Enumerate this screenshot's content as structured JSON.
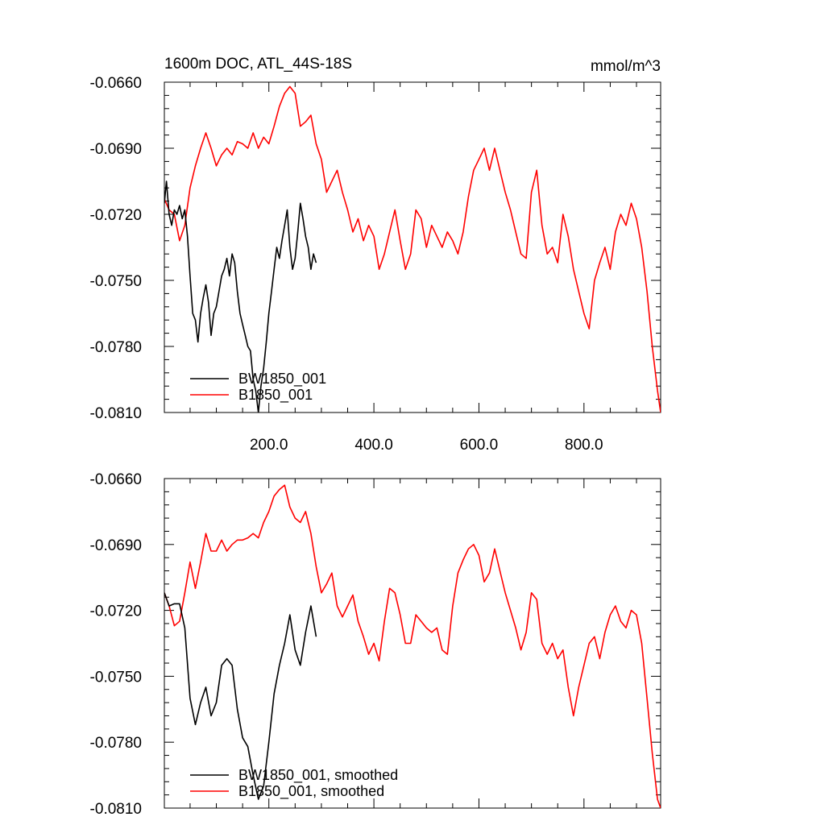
{
  "chart_data": [
    {
      "type": "line",
      "title": "1600m DOC, ATL_44S-18S",
      "units": "mmol/m^3",
      "xlim": [
        1,
        946
      ],
      "ylim": [
        -0.081,
        -0.066
      ],
      "xticks": [
        200,
        400,
        600,
        800
      ],
      "xtick_labels": [
        "200.0",
        "400.0",
        "600.0",
        "800.0"
      ],
      "yticks": [
        -0.066,
        -0.069,
        -0.072,
        -0.075,
        -0.078,
        -0.081
      ],
      "ytick_labels": [
        "-0.0660",
        "-0.0690",
        "-0.0720",
        "-0.0750",
        "-0.0780",
        "-0.0810"
      ],
      "grid": false,
      "legend_position": "bottom-left",
      "series": [
        {
          "name": "BW1850_001",
          "color": "#000000",
          "x": [
            1,
            5,
            10,
            15,
            20,
            25,
            30,
            35,
            40,
            45,
            50,
            55,
            60,
            65,
            70,
            75,
            80,
            85,
            90,
            95,
            100,
            105,
            110,
            115,
            120,
            125,
            130,
            135,
            140,
            145,
            150,
            155,
            160,
            165,
            170,
            175,
            180,
            185,
            190,
            195,
            200,
            205,
            210,
            215,
            220,
            225,
            230,
            235,
            240,
            245,
            250,
            255,
            260,
            265,
            270,
            275,
            280,
            285,
            290
          ],
          "y": [
            -0.0715,
            -0.0705,
            -0.072,
            -0.0725,
            -0.0718,
            -0.072,
            -0.0716,
            -0.0722,
            -0.0718,
            -0.073,
            -0.0748,
            -0.0765,
            -0.0768,
            -0.0778,
            -0.0765,
            -0.0758,
            -0.0752,
            -0.076,
            -0.0775,
            -0.0765,
            -0.0762,
            -0.0755,
            -0.0748,
            -0.0745,
            -0.074,
            -0.0748,
            -0.0738,
            -0.0742,
            -0.0755,
            -0.0765,
            -0.077,
            -0.0775,
            -0.078,
            -0.0782,
            -0.0795,
            -0.08,
            -0.081,
            -0.0798,
            -0.079,
            -0.0778,
            -0.0765,
            -0.0755,
            -0.0745,
            -0.0735,
            -0.074,
            -0.0732,
            -0.0725,
            -0.0718,
            -0.0735,
            -0.0745,
            -0.074,
            -0.0728,
            -0.0715,
            -0.0722,
            -0.073,
            -0.0735,
            -0.0745,
            -0.0738,
            -0.0742
          ]
        },
        {
          "name": "B1850_001",
          "color": "#ff0000",
          "x": [
            1,
            10,
            20,
            30,
            40,
            50,
            60,
            70,
            80,
            90,
            100,
            110,
            120,
            130,
            140,
            150,
            160,
            170,
            180,
            190,
            200,
            210,
            220,
            230,
            240,
            250,
            260,
            270,
            280,
            290,
            300,
            310,
            320,
            330,
            340,
            350,
            360,
            370,
            380,
            390,
            400,
            410,
            420,
            430,
            440,
            450,
            460,
            470,
            480,
            490,
            500,
            510,
            520,
            530,
            540,
            550,
            560,
            570,
            580,
            590,
            600,
            610,
            620,
            630,
            640,
            650,
            660,
            670,
            680,
            690,
            700,
            710,
            720,
            730,
            740,
            750,
            760,
            770,
            780,
            790,
            800,
            810,
            820,
            830,
            840,
            850,
            860,
            870,
            880,
            890,
            900,
            910,
            920,
            930,
            940,
            946
          ],
          "y": [
            -0.0713,
            -0.0718,
            -0.072,
            -0.0732,
            -0.0725,
            -0.0708,
            -0.0698,
            -0.069,
            -0.0683,
            -0.069,
            -0.0698,
            -0.0693,
            -0.069,
            -0.0693,
            -0.0687,
            -0.0688,
            -0.069,
            -0.0683,
            -0.069,
            -0.0685,
            -0.0688,
            -0.068,
            -0.0671,
            -0.0665,
            -0.0662,
            -0.0665,
            -0.068,
            -0.0678,
            -0.0675,
            -0.0688,
            -0.0695,
            -0.071,
            -0.0705,
            -0.07,
            -0.071,
            -0.0718,
            -0.0728,
            -0.0722,
            -0.0732,
            -0.0725,
            -0.073,
            -0.0745,
            -0.0738,
            -0.0728,
            -0.0718,
            -0.0732,
            -0.0745,
            -0.0738,
            -0.0718,
            -0.0722,
            -0.0735,
            -0.0725,
            -0.073,
            -0.0735,
            -0.0728,
            -0.0732,
            -0.0738,
            -0.0728,
            -0.0712,
            -0.07,
            -0.0695,
            -0.069,
            -0.07,
            -0.069,
            -0.07,
            -0.071,
            -0.0718,
            -0.0728,
            -0.0738,
            -0.074,
            -0.071,
            -0.07,
            -0.0725,
            -0.0738,
            -0.0735,
            -0.0742,
            -0.072,
            -0.073,
            -0.0745,
            -0.0755,
            -0.0765,
            -0.0772,
            -0.075,
            -0.0742,
            -0.0735,
            -0.0745,
            -0.0728,
            -0.072,
            -0.0725,
            -0.0715,
            -0.0722,
            -0.0735,
            -0.0755,
            -0.078,
            -0.08,
            -0.081
          ]
        }
      ]
    },
    {
      "type": "line",
      "xlim": [
        1,
        946
      ],
      "ylim": [
        -0.081,
        -0.066
      ],
      "xticks": [
        200,
        400,
        600,
        800
      ],
      "yticks": [
        -0.066,
        -0.069,
        -0.072,
        -0.075,
        -0.078,
        -0.081
      ],
      "ytick_labels": [
        "-0.0660",
        "-0.0690",
        "-0.0720",
        "-0.0750",
        "-0.0780",
        "-0.0810"
      ],
      "grid": false,
      "legend_position": "bottom-left",
      "series": [
        {
          "name": "BW1850_001, smoothed",
          "color": "#000000",
          "x": [
            1,
            10,
            20,
            30,
            40,
            50,
            60,
            70,
            80,
            90,
            100,
            110,
            120,
            130,
            140,
            150,
            160,
            170,
            180,
            190,
            200,
            210,
            220,
            230,
            240,
            250,
            260,
            270,
            280,
            290
          ],
          "y": [
            -0.0712,
            -0.0718,
            -0.0717,
            -0.0717,
            -0.0728,
            -0.076,
            -0.0772,
            -0.0762,
            -0.0755,
            -0.0768,
            -0.0762,
            -0.0745,
            -0.0742,
            -0.0745,
            -0.0765,
            -0.0778,
            -0.0782,
            -0.0795,
            -0.0806,
            -0.08,
            -0.078,
            -0.0758,
            -0.0745,
            -0.0735,
            -0.0722,
            -0.0738,
            -0.0745,
            -0.073,
            -0.0718,
            -0.0732
          ]
        },
        {
          "name": "B1850_001, smoothed",
          "color": "#ff0000",
          "x": [
            1,
            10,
            20,
            30,
            40,
            50,
            60,
            70,
            80,
            90,
            100,
            110,
            120,
            130,
            140,
            150,
            160,
            170,
            180,
            190,
            200,
            210,
            220,
            230,
            240,
            250,
            260,
            270,
            280,
            290,
            300,
            310,
            320,
            330,
            340,
            350,
            360,
            370,
            380,
            390,
            400,
            410,
            420,
            430,
            440,
            450,
            460,
            470,
            480,
            490,
            500,
            510,
            520,
            530,
            540,
            550,
            560,
            570,
            580,
            590,
            600,
            610,
            620,
            630,
            640,
            650,
            660,
            670,
            680,
            690,
            700,
            710,
            720,
            730,
            740,
            750,
            760,
            770,
            780,
            790,
            800,
            810,
            820,
            830,
            840,
            850,
            860,
            870,
            880,
            890,
            900,
            910,
            920,
            930,
            940,
            946
          ],
          "y": [
            -0.0712,
            -0.0718,
            -0.0727,
            -0.0725,
            -0.0712,
            -0.0698,
            -0.071,
            -0.0698,
            -0.0685,
            -0.0693,
            -0.0693,
            -0.0688,
            -0.0693,
            -0.069,
            -0.0688,
            -0.0688,
            -0.0687,
            -0.0685,
            -0.0687,
            -0.068,
            -0.0675,
            -0.0668,
            -0.0665,
            -0.0663,
            -0.0673,
            -0.0678,
            -0.068,
            -0.0675,
            -0.0685,
            -0.07,
            -0.0712,
            -0.0708,
            -0.0703,
            -0.0718,
            -0.0723,
            -0.0718,
            -0.0713,
            -0.0725,
            -0.0732,
            -0.074,
            -0.0735,
            -0.0743,
            -0.0725,
            -0.071,
            -0.0712,
            -0.0722,
            -0.0735,
            -0.0735,
            -0.0722,
            -0.0725,
            -0.0728,
            -0.073,
            -0.0728,
            -0.0738,
            -0.074,
            -0.0718,
            -0.0703,
            -0.0697,
            -0.0692,
            -0.069,
            -0.0695,
            -0.0707,
            -0.0703,
            -0.0692,
            -0.0702,
            -0.0712,
            -0.072,
            -0.0728,
            -0.0738,
            -0.073,
            -0.0712,
            -0.0715,
            -0.0735,
            -0.074,
            -0.0735,
            -0.0742,
            -0.0738,
            -0.0755,
            -0.0768,
            -0.0755,
            -0.0745,
            -0.0735,
            -0.0732,
            -0.0742,
            -0.073,
            -0.0722,
            -0.0718,
            -0.0725,
            -0.0728,
            -0.072,
            -0.0722,
            -0.0735,
            -0.076,
            -0.0785,
            -0.0806,
            -0.081
          ]
        }
      ]
    }
  ]
}
